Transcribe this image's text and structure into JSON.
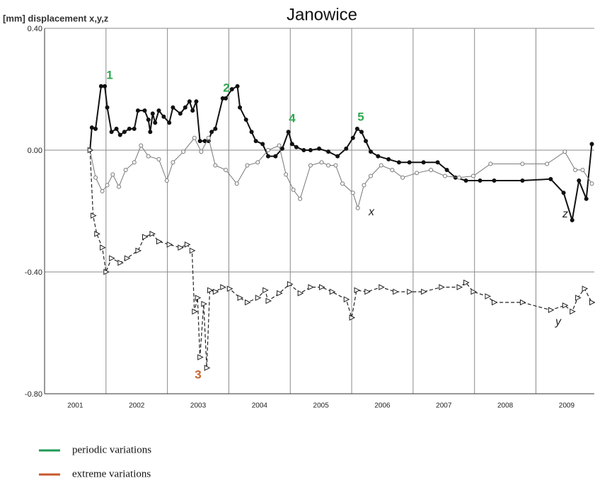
{
  "chart_data": {
    "type": "line",
    "title": "Janowice",
    "y_axis_label": "[mm] displacement x,y,z",
    "xlim": [
      2001,
      2009.95
    ],
    "ylim": [
      -0.8,
      0.4
    ],
    "yticks": [
      {
        "value": 0.4,
        "label": "0.40"
      },
      {
        "value": 0,
        "label": "0.00"
      },
      {
        "value": -0.4,
        "label": "-0.40"
      },
      {
        "value": -0.8,
        "label": "-0.80"
      }
    ],
    "xticks": [
      {
        "value": 2001.5,
        "label": "2001"
      },
      {
        "value": 2002.5,
        "label": "2002"
      },
      {
        "value": 2003.5,
        "label": "2003"
      },
      {
        "value": 2004.5,
        "label": "2004"
      },
      {
        "value": 2005.5,
        "label": "2005"
      },
      {
        "value": 2006.5,
        "label": "2006"
      },
      {
        "value": 2007.5,
        "label": "2007"
      },
      {
        "value": 2008.5,
        "label": "2008"
      },
      {
        "value": 2009.5,
        "label": "2009"
      }
    ],
    "xgrid": [
      2002,
      2003,
      2004,
      2005,
      2006,
      2007,
      2008,
      2009
    ],
    "grid": true,
    "series": [
      {
        "name": "z",
        "color": "#111111",
        "dashed": false,
        "marker": "circle",
        "marker_fill": "#111111",
        "width": 2,
        "x": [
          2001.74,
          2001.77,
          2001.83,
          2001.92,
          2001.98,
          2002.02,
          2002.09,
          2002.17,
          2002.23,
          2002.3,
          2002.38,
          2002.46,
          2002.52,
          2002.63,
          2002.69,
          2002.72,
          2002.76,
          2002.8,
          2002.86,
          2002.94,
          2003.03,
          2003.09,
          2003.21,
          2003.29,
          2003.36,
          2003.41,
          2003.47,
          2003.53,
          2003.61,
          2003.67,
          2003.72,
          2003.78,
          2003.9,
          2003.95,
          2004.05,
          2004.14,
          2004.18,
          2004.28,
          2004.37,
          2004.44,
          2004.55,
          2004.64,
          2004.76,
          2004.87,
          2004.97,
          2005.03,
          2005.1,
          2005.22,
          2005.33,
          2005.47,
          2005.62,
          2005.77,
          2005.91,
          2006.02,
          2006.09,
          2006.16,
          2006.23,
          2006.31,
          2006.43,
          2006.6,
          2006.77,
          2006.94,
          2007.17,
          2007.4,
          2007.55,
          2007.69,
          2007.86,
          2008.09,
          2008.32,
          2008.78,
          2009.24,
          2009.45,
          2009.59,
          2009.7,
          2009.82,
          2009.91
        ],
        "values": [
          0,
          0.074,
          0.07,
          0.21,
          0.21,
          0.14,
          0.06,
          0.07,
          0.05,
          0.06,
          0.07,
          0.07,
          0.13,
          0.13,
          0.1,
          0.06,
          0.12,
          0.09,
          0.13,
          0.11,
          0.09,
          0.14,
          0.12,
          0.14,
          0.16,
          0.13,
          0.16,
          0.03,
          0.03,
          0.03,
          0.06,
          0.07,
          0.17,
          0.17,
          0.2,
          0.21,
          0.14,
          0.1,
          0.06,
          0.03,
          0.02,
          -0.02,
          -0.02,
          0.005,
          0.06,
          0.02,
          0.01,
          0,
          0,
          0.005,
          -0.005,
          -0.02,
          0.005,
          0.04,
          0.07,
          0.06,
          0.03,
          -0.005,
          -0.02,
          -0.03,
          -0.04,
          -0.04,
          -0.04,
          -0.04,
          -0.065,
          -0.09,
          -0.1,
          -0.1,
          -0.1,
          -0.1,
          -0.095,
          -0.14,
          -0.23,
          -0.1,
          -0.16,
          0.02
        ]
      },
      {
        "name": "x",
        "color": "#777777",
        "dashed": false,
        "marker": "circle",
        "marker_fill": "#ffffff",
        "width": 1,
        "x": [
          2001.74,
          2001.83,
          2001.94,
          2002.02,
          2002.11,
          2002.21,
          2002.32,
          2002.46,
          2002.57,
          2002.69,
          2002.86,
          2002.99,
          2003.09,
          2003.26,
          2003.44,
          2003.55,
          2003.67,
          2003.78,
          2003.95,
          2004.13,
          2004.3,
          2004.47,
          2004.64,
          2004.82,
          2004.93,
          2005.05,
          2005.16,
          2005.33,
          2005.51,
          2005.62,
          2005.74,
          2005.85,
          2006.02,
          2006.1,
          2006.2,
          2006.31,
          2006.48,
          2006.66,
          2006.83,
          2007.06,
          2007.29,
          2007.52,
          2007.75,
          2007.98,
          2008.26,
          2008.78,
          2009.18,
          2009.47,
          2009.64,
          2009.76,
          2009.91
        ],
        "values": [
          0,
          -0.09,
          -0.135,
          -0.115,
          -0.08,
          -0.12,
          -0.065,
          -0.04,
          0.015,
          -0.02,
          -0.03,
          -0.1,
          -0.04,
          -0.005,
          0.04,
          -0.005,
          0.04,
          -0.05,
          -0.065,
          -0.11,
          -0.05,
          -0.04,
          0,
          0.015,
          -0.08,
          -0.13,
          -0.16,
          -0.05,
          -0.04,
          -0.05,
          -0.05,
          -0.11,
          -0.14,
          -0.19,
          -0.115,
          -0.085,
          -0.05,
          -0.065,
          -0.09,
          -0.075,
          -0.065,
          -0.085,
          -0.09,
          -0.085,
          -0.045,
          -0.045,
          -0.045,
          -0.005,
          -0.065,
          -0.065,
          -0.11
        ]
      },
      {
        "name": "y",
        "color": "#222222",
        "dashed": true,
        "marker": "triangle",
        "marker_fill": "#ffffff",
        "width": 1.2,
        "x": [
          2001.74,
          2001.79,
          2001.85,
          2001.94,
          2002.0,
          2002.09,
          2002.23,
          2002.34,
          2002.52,
          2002.63,
          2002.75,
          2002.86,
          2003.03,
          2003.21,
          2003.32,
          2003.4,
          2003.44,
          2003.49,
          2003.53,
          2003.59,
          2003.64,
          2003.69,
          2003.78,
          2003.9,
          2004.01,
          2004.18,
          2004.3,
          2004.47,
          2004.59,
          2004.64,
          2004.82,
          2004.99,
          2005.16,
          2005.33,
          2005.51,
          2005.68,
          2005.91,
          2006.0,
          2006.08,
          2006.25,
          2006.48,
          2006.71,
          2006.94,
          2007.17,
          2007.46,
          2007.75,
          2007.86,
          2007.98,
          2008.21,
          2008.32,
          2008.78,
          2009.24,
          2009.47,
          2009.59,
          2009.68,
          2009.79,
          2009.91
        ],
        "values": [
          0,
          -0.215,
          -0.275,
          -0.32,
          -0.4,
          -0.355,
          -0.37,
          -0.355,
          -0.33,
          -0.285,
          -0.275,
          -0.3,
          -0.31,
          -0.32,
          -0.31,
          -0.33,
          -0.53,
          -0.485,
          -0.68,
          -0.505,
          -0.715,
          -0.46,
          -0.465,
          -0.45,
          -0.455,
          -0.485,
          -0.5,
          -0.485,
          -0.46,
          -0.495,
          -0.47,
          -0.44,
          -0.47,
          -0.45,
          -0.45,
          -0.465,
          -0.49,
          -0.55,
          -0.46,
          -0.465,
          -0.45,
          -0.465,
          -0.465,
          -0.465,
          -0.45,
          -0.45,
          -0.435,
          -0.465,
          -0.48,
          -0.5,
          -0.5,
          -0.525,
          -0.51,
          -0.53,
          -0.485,
          -0.455,
          -0.5
        ]
      }
    ],
    "annotations": [
      {
        "text": "1",
        "color": "#2ea84e"
      },
      {
        "text": "2",
        "color": "#2ea84e"
      },
      {
        "text": "3",
        "color": "#c8652e"
      },
      {
        "text": "4",
        "color": "#2ea84e"
      },
      {
        "text": "5",
        "color": "#2ea84e"
      }
    ],
    "legend_items": [
      {
        "label": "periodic variations",
        "color": "#1f9a55"
      },
      {
        "label": "extreme variations",
        "color": "#c8582a"
      }
    ]
  }
}
